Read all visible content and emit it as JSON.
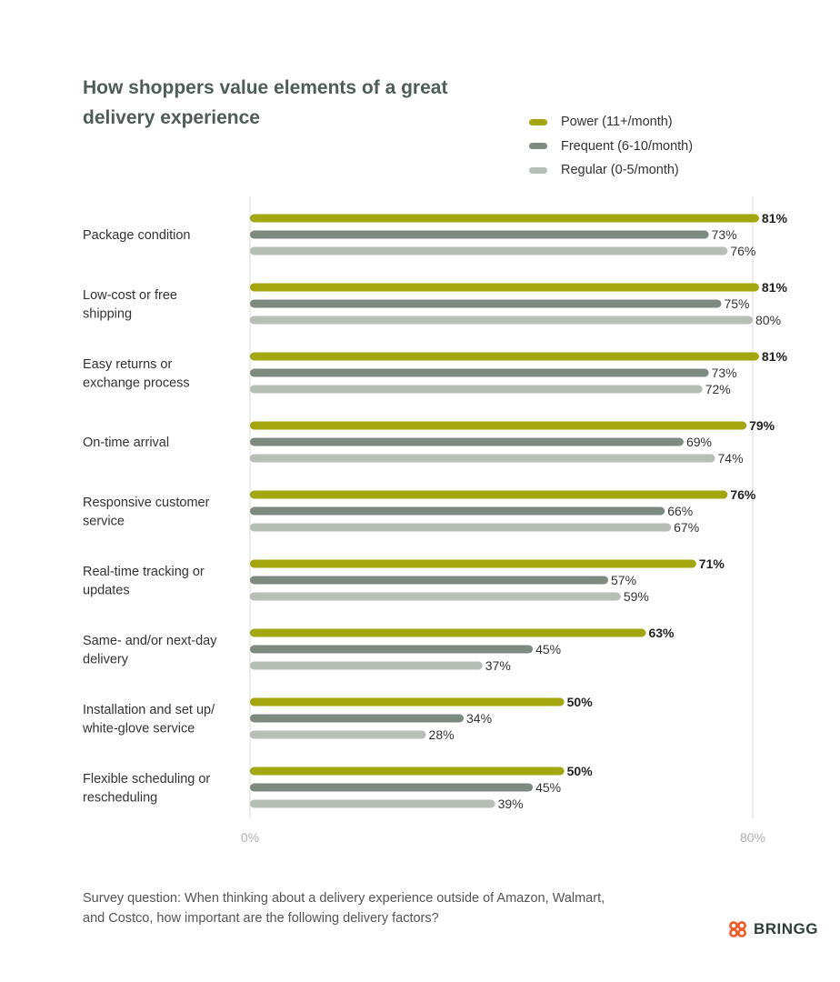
{
  "title": "How shoppers value elements of a great delivery experience",
  "legend": [
    {
      "label": "Power (11+/month)",
      "color": "#a3a60c"
    },
    {
      "label": "Frequent (6-10/month)",
      "color": "#7e8b81"
    },
    {
      "label": "Regular (0-5/month)",
      "color": "#b5bfb5"
    }
  ],
  "chart_data": {
    "type": "bar",
    "orientation": "horizontal",
    "categories": [
      "Package condition",
      "Low-cost or free shipping",
      "Easy returns or exchange process",
      "On-time arrival",
      "Responsive customer service",
      "Real-time tracking or updates",
      "Same- and/or next-day delivery",
      "Installation and set up/ white-glove service",
      "Flexible scheduling or rescheduling"
    ],
    "category_lines": [
      [
        "Package condition"
      ],
      [
        "Low-cost or free",
        "shipping"
      ],
      [
        "Easy returns or",
        "exchange process"
      ],
      [
        "On-time arrival"
      ],
      [
        "Responsive customer",
        "service"
      ],
      [
        "Real-time tracking or",
        "updates"
      ],
      [
        "Same- and/or next-day",
        "delivery"
      ],
      [
        "Installation and set up/",
        "white-glove service"
      ],
      [
        "Flexible scheduling or",
        "rescheduling"
      ]
    ],
    "series": [
      {
        "name": "Power (11+/month)",
        "values": [
          81,
          81,
          81,
          79,
          76,
          71,
          63,
          50,
          50
        ]
      },
      {
        "name": "Frequent (6-10/month)",
        "values": [
          73,
          75,
          73,
          69,
          66,
          57,
          45,
          34,
          45
        ]
      },
      {
        "name": "Regular (0-5/month)",
        "values": [
          76,
          80,
          72,
          74,
          67,
          59,
          37,
          28,
          39
        ]
      }
    ],
    "value_suffix": "%",
    "xlim": [
      0,
      80
    ],
    "x_ticks": [
      "0%",
      "80%"
    ],
    "grid": "vertical lines at 0% and 80%",
    "legend_position": "top-right"
  },
  "footnote": "Survey question: When thinking about a delivery experience outside of Amazon, Walmart, and Costco, how important are the following delivery factors?",
  "brand": {
    "name": "BRINGG",
    "logo_color": "#f15a24",
    "logo_icon": "bringg-logo-icon"
  }
}
